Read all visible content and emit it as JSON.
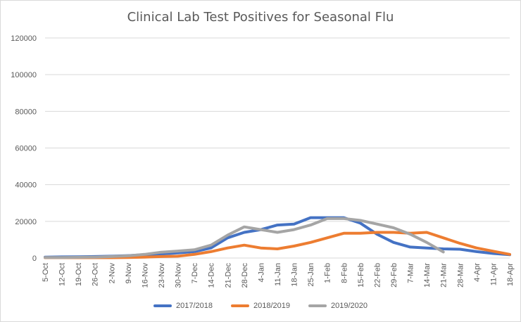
{
  "chart_data": {
    "type": "line",
    "title": "Clinical Lab Test Positives for Seasonal Flu",
    "xlabel": "",
    "ylabel": "",
    "ylim": [
      0,
      120000
    ],
    "yticks": [
      "0",
      "20000",
      "40000",
      "60000",
      "80000",
      "100000",
      "120000"
    ],
    "grid": true,
    "legend_position": "bottom",
    "categories": [
      "5-Oct",
      "12-Oct",
      "19-Oct",
      "26-Oct",
      "2-Nov",
      "9-Nov",
      "16-Nov",
      "23-Nov",
      "30-Nov",
      "7-Dec",
      "14-Dec",
      "21-Dec",
      "28-Dec",
      "4-Jan",
      "11-Jan",
      "18-Jan",
      "25-Jan",
      "1-Feb",
      "8-Feb",
      "15-Feb",
      "22-Feb",
      "29-Feb",
      "7-Mar",
      "14-Mar",
      "21-Mar",
      "28-Mar",
      "4-Apr",
      "11-Apr",
      "18-Apr"
    ],
    "series": [
      {
        "name": "2017/2018",
        "color": "#4472c4",
        "values": [
          500,
          600,
          700,
          800,
          1000,
          1300,
          1800,
          2200,
          2800,
          3500,
          5500,
          11000,
          14000,
          15500,
          18000,
          18500,
          22000,
          22000,
          22000,
          19000,
          13000,
          8500,
          6000,
          5500,
          5000,
          4800,
          3500,
          2500,
          1800
        ]
      },
      {
        "name": "2018/2019",
        "color": "#ed7d31",
        "values": [
          200,
          200,
          200,
          200,
          200,
          300,
          500,
          800,
          1000,
          2000,
          3500,
          5500,
          7000,
          5500,
          5000,
          6500,
          8500,
          11000,
          13500,
          13500,
          14000,
          14000,
          13500,
          14000,
          11000,
          8000,
          5500,
          3700,
          2000
        ]
      },
      {
        "name": "2019/2020",
        "color": "#a5a5a5",
        "values": [
          300,
          300,
          400,
          500,
          800,
          1200,
          2000,
          3200,
          3800,
          4500,
          7000,
          12500,
          17000,
          15500,
          14000,
          15500,
          18000,
          21500,
          21500,
          20500,
          18500,
          16500,
          13000,
          8500,
          3300,
          null,
          null,
          null,
          null
        ]
      }
    ]
  }
}
